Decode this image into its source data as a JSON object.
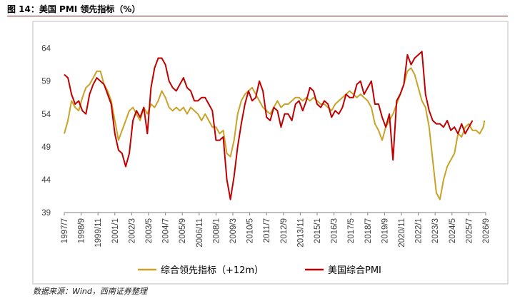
{
  "figure": {
    "title": "图 14：美国 PMI 领先指标（%）",
    "source": "数据来源：Wind，西南证券整理"
  },
  "chart_data": {
    "type": "line",
    "title": "",
    "xlabel": "",
    "ylabel": "",
    "ylim": [
      39,
      67
    ],
    "yticks": [
      39,
      44,
      49,
      54,
      59,
      64
    ],
    "xlim": [
      "1997-07",
      "2026-09"
    ],
    "xtick_labels": [
      "1997/7",
      "1998/9",
      "1999/11",
      "2001/1",
      "2002/3",
      "2003/5",
      "2004/7",
      "2005/9",
      "2006/11",
      "2008/1",
      "2009/3",
      "2010/5",
      "2011/7",
      "2012/9",
      "2013/11",
      "2015/1",
      "2016/3",
      "2017/5",
      "2018/7",
      "2019/9",
      "2020/11",
      "2022/1",
      "2023/3",
      "2024/5",
      "2025/7",
      "2026/9"
    ],
    "grid": false,
    "legend": "bottom",
    "colors": {
      "leading": "#c9a227",
      "pmi": "#c00000"
    },
    "series": [
      {
        "name": "综合领先指标（+12m）",
        "color": "#c9a227",
        "points": [
          [
            "1997-07",
            51.0
          ],
          [
            "1997-10",
            53.0
          ],
          [
            "1998-01",
            56.0
          ],
          [
            "1998-04",
            55.0
          ],
          [
            "1998-07",
            54.5
          ],
          [
            "1998-10",
            56.5
          ],
          [
            "1999-01",
            58.0
          ],
          [
            "1999-04",
            58.5
          ],
          [
            "1999-07",
            59.5
          ],
          [
            "1999-10",
            60.5
          ],
          [
            "2000-01",
            60.5
          ],
          [
            "2000-04",
            58.5
          ],
          [
            "2000-07",
            57.5
          ],
          [
            "2000-10",
            56.0
          ],
          [
            "2001-01",
            53.0
          ],
          [
            "2001-04",
            50.0
          ],
          [
            "2001-07",
            51.5
          ],
          [
            "2001-10",
            53.0
          ],
          [
            "2002-01",
            54.5
          ],
          [
            "2002-04",
            55.0
          ],
          [
            "2002-07",
            54.0
          ],
          [
            "2002-10",
            53.0
          ],
          [
            "2003-01",
            55.0
          ],
          [
            "2003-04",
            54.0
          ],
          [
            "2003-07",
            55.5
          ],
          [
            "2003-10",
            55.0
          ],
          [
            "2004-01",
            56.0
          ],
          [
            "2004-04",
            57.5
          ],
          [
            "2004-07",
            56.5
          ],
          [
            "2004-10",
            55.0
          ],
          [
            "2005-01",
            54.5
          ],
          [
            "2005-04",
            55.0
          ],
          [
            "2005-07",
            54.5
          ],
          [
            "2005-10",
            55.0
          ],
          [
            "2006-01",
            54.0
          ],
          [
            "2006-04",
            55.0
          ],
          [
            "2006-07",
            54.5
          ],
          [
            "2006-10",
            54.0
          ],
          [
            "2007-01",
            53.0
          ],
          [
            "2007-04",
            54.0
          ],
          [
            "2007-07",
            53.0
          ],
          [
            "2007-10",
            52.0
          ],
          [
            "2008-01",
            52.0
          ],
          [
            "2008-04",
            51.0
          ],
          [
            "2008-07",
            51.5
          ],
          [
            "2008-10",
            48.0
          ],
          [
            "2009-01",
            47.5
          ],
          [
            "2009-04",
            50.0
          ],
          [
            "2009-07",
            54.0
          ],
          [
            "2009-10",
            56.0
          ],
          [
            "2010-01",
            57.0
          ],
          [
            "2010-04",
            57.5
          ],
          [
            "2010-07",
            58.0
          ],
          [
            "2010-10",
            57.0
          ],
          [
            "2011-01",
            56.0
          ],
          [
            "2011-04",
            55.0
          ],
          [
            "2011-07",
            54.5
          ],
          [
            "2011-10",
            54.0
          ],
          [
            "2012-01",
            55.0
          ],
          [
            "2012-04",
            56.0
          ],
          [
            "2012-07",
            55.0
          ],
          [
            "2012-10",
            55.5
          ],
          [
            "2013-01",
            55.5
          ],
          [
            "2013-04",
            56.0
          ],
          [
            "2013-07",
            56.5
          ],
          [
            "2013-10",
            56.5
          ],
          [
            "2014-01",
            56.0
          ],
          [
            "2014-04",
            56.5
          ],
          [
            "2014-07",
            56.0
          ],
          [
            "2014-10",
            56.5
          ],
          [
            "2015-01",
            56.0
          ],
          [
            "2015-04",
            55.5
          ],
          [
            "2015-07",
            55.5
          ],
          [
            "2015-10",
            55.0
          ],
          [
            "2016-01",
            54.5
          ],
          [
            "2016-04",
            55.5
          ],
          [
            "2016-07",
            56.0
          ],
          [
            "2016-10",
            56.5
          ],
          [
            "2017-01",
            57.0
          ],
          [
            "2017-04",
            57.5
          ],
          [
            "2017-07",
            57.0
          ],
          [
            "2017-10",
            56.5
          ],
          [
            "2018-01",
            57.0
          ],
          [
            "2018-04",
            56.5
          ],
          [
            "2018-07",
            56.0
          ],
          [
            "2018-10",
            55.0
          ],
          [
            "2019-01",
            52.5
          ],
          [
            "2019-04",
            51.5
          ],
          [
            "2019-07",
            50.0
          ],
          [
            "2019-10",
            52.0
          ],
          [
            "2020-01",
            53.0
          ],
          [
            "2020-04",
            54.0
          ],
          [
            "2020-07",
            55.5
          ],
          [
            "2020-10",
            57.0
          ],
          [
            "2021-01",
            58.5
          ],
          [
            "2021-04",
            60.5
          ],
          [
            "2021-07",
            61.0
          ],
          [
            "2021-10",
            60.0
          ],
          [
            "2022-01",
            58.0
          ],
          [
            "2022-04",
            56.0
          ],
          [
            "2022-07",
            55.0
          ],
          [
            "2022-10",
            52.0
          ],
          [
            "2023-01",
            47.0
          ],
          [
            "2023-04",
            42.0
          ],
          [
            "2023-07",
            41.0
          ],
          [
            "2023-10",
            44.0
          ],
          [
            "2024-01",
            46.0
          ],
          [
            "2024-04",
            47.0
          ],
          [
            "2024-07",
            48.0
          ],
          [
            "2024-10",
            51.0
          ],
          [
            "2025-01",
            50.5
          ],
          [
            "2025-04",
            52.0
          ],
          [
            "2025-07",
            52.5
          ],
          [
            "2025-10",
            51.5
          ],
          [
            "2026-01",
            51.5
          ],
          [
            "2026-04",
            51.0
          ],
          [
            "2026-07",
            52.0
          ],
          [
            "2026-08",
            53.0
          ]
        ]
      },
      {
        "name": "美国综合PMI",
        "color": "#c00000",
        "points": [
          [
            "1997-07",
            60.0
          ],
          [
            "1997-10",
            59.5
          ],
          [
            "1998-01",
            57.0
          ],
          [
            "1998-04",
            55.5
          ],
          [
            "1998-07",
            56.0
          ],
          [
            "1998-10",
            54.5
          ],
          [
            "1999-01",
            54.0
          ],
          [
            "1999-04",
            57.0
          ],
          [
            "1999-07",
            58.5
          ],
          [
            "1999-10",
            59.5
          ],
          [
            "2000-01",
            59.0
          ],
          [
            "2000-04",
            58.5
          ],
          [
            "2000-07",
            57.0
          ],
          [
            "2000-10",
            55.5
          ],
          [
            "2001-01",
            51.0
          ],
          [
            "2001-04",
            48.5
          ],
          [
            "2001-07",
            48.0
          ],
          [
            "2001-10",
            46.0
          ],
          [
            "2002-01",
            48.0
          ],
          [
            "2002-04",
            53.0
          ],
          [
            "2002-07",
            54.5
          ],
          [
            "2002-10",
            53.5
          ],
          [
            "2003-01",
            55.0
          ],
          [
            "2003-04",
            51.0
          ],
          [
            "2003-07",
            58.0
          ],
          [
            "2003-10",
            61.0
          ],
          [
            "2004-01",
            62.5
          ],
          [
            "2004-04",
            62.5
          ],
          [
            "2004-07",
            61.5
          ],
          [
            "2004-10",
            59.0
          ],
          [
            "2005-01",
            58.0
          ],
          [
            "2005-04",
            57.5
          ],
          [
            "2005-07",
            58.5
          ],
          [
            "2005-10",
            59.5
          ],
          [
            "2006-01",
            58.0
          ],
          [
            "2006-04",
            57.5
          ],
          [
            "2006-07",
            56.0
          ],
          [
            "2006-10",
            56.0
          ],
          [
            "2007-01",
            56.5
          ],
          [
            "2007-04",
            56.5
          ],
          [
            "2007-07",
            55.5
          ],
          [
            "2007-10",
            54.5
          ],
          [
            "2008-01",
            50.0
          ],
          [
            "2008-04",
            50.0
          ],
          [
            "2008-07",
            50.5
          ],
          [
            "2008-10",
            44.0
          ],
          [
            "2009-01",
            41.0
          ],
          [
            "2009-04",
            44.5
          ],
          [
            "2009-07",
            49.0
          ],
          [
            "2009-10",
            52.5
          ],
          [
            "2010-01",
            55.5
          ],
          [
            "2010-04",
            57.5
          ],
          [
            "2010-07",
            56.0
          ],
          [
            "2010-10",
            56.5
          ],
          [
            "2011-01",
            59.0
          ],
          [
            "2011-04",
            57.5
          ],
          [
            "2011-07",
            53.5
          ],
          [
            "2011-10",
            53.0
          ],
          [
            "2012-01",
            55.0
          ],
          [
            "2012-04",
            54.5
          ],
          [
            "2012-07",
            52.0
          ],
          [
            "2012-10",
            54.0
          ],
          [
            "2013-01",
            54.0
          ],
          [
            "2013-04",
            53.0
          ],
          [
            "2013-07",
            55.5
          ],
          [
            "2013-10",
            56.0
          ],
          [
            "2014-01",
            54.5
          ],
          [
            "2014-04",
            56.0
          ],
          [
            "2014-07",
            58.0
          ],
          [
            "2014-10",
            57.5
          ],
          [
            "2015-01",
            55.5
          ],
          [
            "2015-04",
            55.0
          ],
          [
            "2015-07",
            56.0
          ],
          [
            "2015-10",
            55.5
          ],
          [
            "2016-01",
            53.5
          ],
          [
            "2016-04",
            54.5
          ],
          [
            "2016-07",
            54.0
          ],
          [
            "2016-10",
            55.0
          ],
          [
            "2017-01",
            57.0
          ],
          [
            "2017-04",
            56.5
          ],
          [
            "2017-07",
            56.5
          ],
          [
            "2017-10",
            58.5
          ],
          [
            "2018-01",
            59.0
          ],
          [
            "2018-04",
            57.0
          ],
          [
            "2018-07",
            58.0
          ],
          [
            "2018-10",
            59.0
          ],
          [
            "2019-01",
            55.5
          ],
          [
            "2019-04",
            55.5
          ],
          [
            "2019-07",
            53.5
          ],
          [
            "2019-10",
            52.0
          ],
          [
            "2020-01",
            54.0
          ],
          [
            "2020-04",
            47.0
          ],
          [
            "2020-07",
            56.0
          ],
          [
            "2020-10",
            57.0
          ],
          [
            "2021-01",
            58.5
          ],
          [
            "2021-04",
            63.0
          ],
          [
            "2021-07",
            61.5
          ],
          [
            "2021-10",
            62.5
          ],
          [
            "2022-01",
            63.0
          ],
          [
            "2022-04",
            63.5
          ],
          [
            "2022-07",
            57.0
          ],
          [
            "2022-10",
            54.5
          ],
          [
            "2023-01",
            53.0
          ],
          [
            "2023-04",
            52.5
          ],
          [
            "2023-07",
            52.5
          ],
          [
            "2023-10",
            52.0
          ],
          [
            "2024-01",
            53.0
          ],
          [
            "2024-04",
            51.5
          ],
          [
            "2024-07",
            52.0
          ],
          [
            "2024-10",
            51.0
          ],
          [
            "2025-01",
            52.5
          ],
          [
            "2025-04",
            51.0
          ],
          [
            "2025-07",
            52.0
          ],
          [
            "2025-10",
            53.0
          ]
        ]
      }
    ]
  }
}
